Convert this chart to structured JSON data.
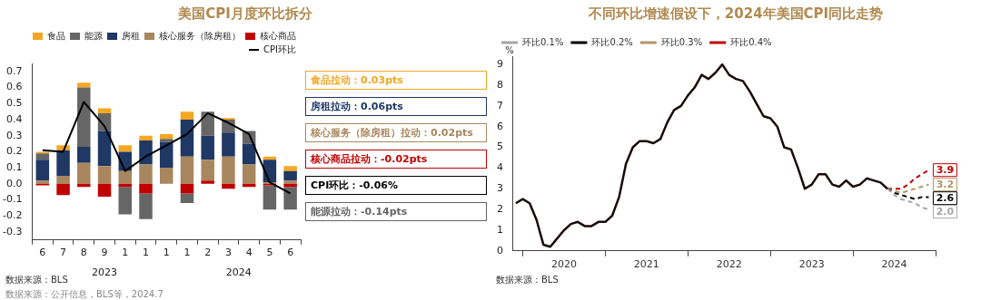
{
  "chart_data": [
    {
      "type": "bar",
      "title": "美国CPI月度环比拆分",
      "categories": [
        "6",
        "7",
        "8",
        "9",
        "1",
        "1",
        "1",
        "1",
        "2",
        "3",
        "4",
        "5",
        "6"
      ],
      "stacked": true,
      "legend": "top",
      "grid": false,
      "marker": "none",
      "ylim": [
        -0.35,
        0.75
      ],
      "yticks": [
        -0.3,
        -0.2,
        -0.1,
        {
          "value": 0,
          "label": "0.0"
        },
        0.1,
        0.2,
        0.3,
        0.4,
        0.5,
        0.6,
        0.7
      ],
      "series": [
        {
          "name": "核心商品",
          "color": "#c00000",
          "values": [
            -0.01,
            -0.07,
            -0.02,
            -0.08,
            -0.02,
            -0.06,
            0,
            -0.06,
            0.02,
            -0.03,
            -0.02,
            -0.01,
            -0.02
          ]
        },
        {
          "name": "核心服务（除房租）",
          "color": "#a8875e",
          "values": [
            0.02,
            0.05,
            0.13,
            0.11,
            0.08,
            0.12,
            0.1,
            0.17,
            0.13,
            0.17,
            0.12,
            0.01,
            0.02
          ]
        },
        {
          "name": "房租",
          "color": "#1f3864",
          "values": [
            0.13,
            0.16,
            0.1,
            0.22,
            0.12,
            0.15,
            0.16,
            0.23,
            0.15,
            0.15,
            0.13,
            0.14,
            0.06
          ]
        },
        {
          "name": "能源",
          "color": "#666666",
          "values": [
            0.04,
            0,
            0.37,
            0.11,
            -0.17,
            -0.16,
            0.02,
            -0.06,
            0.15,
            0.08,
            0.08,
            -0.15,
            -0.14
          ]
        },
        {
          "name": "食品",
          "color": "#f5a623",
          "values": [
            0.01,
            0.03,
            0.03,
            0.03,
            0.04,
            0.03,
            0.03,
            0.05,
            0,
            0.01,
            0,
            0.02,
            0.03
          ]
        },
        {
          "name": "CPI环比",
          "type": "line",
          "color": "#000000",
          "values": [
            0.21,
            0.2,
            0.51,
            0.36,
            0.08,
            0.17,
            0.24,
            0.31,
            0.44,
            0.38,
            0.31,
            0.01,
            -0.06
          ]
        }
      ],
      "annotations": [
        "2023",
        "2024",
        "食品拉动：0.03pts",
        "房租拉动：0.06pts",
        "核心服务（除房租）拉动：0.02pts",
        "核心商品拉动：-0.02pts",
        "CPI环比：-0.06%",
        "能源拉动：-0.14pts",
        "数据来源：BLS",
        "数据来源：公开信息，BLS等，2024.7"
      ]
    },
    {
      "type": "line",
      "title": "不同环比增速假设下，2024年美国CPI同比走势",
      "ylabel": "%",
      "legend": "top",
      "grid": false,
      "marker": "none",
      "xlim": [
        "2019-11-20",
        "2025-01"
      ],
      "xticks": [
        {
          "value": "2020-01",
          "label": null
        },
        {
          "value": "2020-07",
          "label": "2020"
        },
        {
          "value": "2021-01",
          "label": null
        },
        {
          "value": "2021-07",
          "label": "2021"
        },
        {
          "value": "2022-01",
          "label": null
        },
        {
          "value": "2022-07",
          "label": "2022"
        },
        {
          "value": "2023-01",
          "label": null
        },
        {
          "value": "2023-07",
          "label": "2023"
        },
        {
          "value": "2024-01",
          "label": null
        },
        {
          "value": "2024-07",
          "label": "2024"
        },
        {
          "value": "2025-01",
          "label": null
        }
      ],
      "ylim": [
        0,
        9.4
      ],
      "yticks": [
        0,
        1,
        2,
        3,
        4,
        5,
        6,
        7,
        8,
        9
      ],
      "x": [
        "2019-12",
        "2020-01",
        "2020-02",
        "2020-03",
        "2020-04",
        "2020-05",
        "2020-06",
        "2020-07",
        "2020-08",
        "2020-09",
        "2020-10",
        "2020-11",
        "2020-12",
        "2021-01",
        "2021-02",
        "2021-03",
        "2021-04",
        "2021-05",
        "2021-06",
        "2021-07",
        "2021-08",
        "2021-09",
        "2021-10",
        "2021-11",
        "2021-12",
        "2022-01",
        "2022-02",
        "2022-03",
        "2022-04",
        "2022-05",
        "2022-06",
        "2022-07",
        "2022-08",
        "2022-09",
        "2022-10",
        "2022-11",
        "2022-12",
        "2023-01",
        "2023-02",
        "2023-03",
        "2023-04",
        "2023-05",
        "2023-06",
        "2023-07",
        "2023-08",
        "2023-09",
        "2023-10",
        "2023-11",
        "2023-12",
        "2024-01",
        "2024-02",
        "2024-03",
        "2024-04",
        "2024-05",
        "2024-06"
      ],
      "series": [
        {
          "color": "#1a0a0a",
          "values": [
            2.3,
            2.5,
            2.3,
            1.5,
            0.3,
            0.2,
            0.6,
            1.0,
            1.3,
            1.4,
            1.2,
            1.2,
            1.4,
            1.4,
            1.7,
            2.6,
            4.2,
            5.0,
            5.3,
            5.3,
            5.2,
            5.4,
            6.2,
            6.8,
            7.0,
            7.5,
            7.9,
            8.5,
            8.3,
            8.6,
            9.0,
            8.5,
            8.3,
            8.2,
            7.7,
            7.1,
            6.5,
            6.4,
            6.0,
            5.0,
            4.9,
            4.0,
            3.0,
            3.2,
            3.7,
            3.7,
            3.2,
            3.1,
            3.4,
            3.1,
            3.2,
            3.5,
            3.4,
            3.3,
            3.0
          ]
        },
        {
          "name": "环比0.1%",
          "color": "#a6a6a6",
          "line_style": "dashed",
          "x": [
            "2024-06",
            "2024-07",
            "2024-08",
            "2024-09",
            "2024-10",
            "2024-11",
            "2024-12"
          ],
          "values": [
            3.0,
            2.7,
            2.5,
            2.4,
            2.3,
            2.1,
            2.0
          ],
          "value_labels": [
            null,
            null,
            null,
            null,
            null,
            null,
            "2.0"
          ]
        },
        {
          "name": "环比0.2%",
          "color": "#000000",
          "line_style": "dashed",
          "x": [
            "2024-06",
            "2024-07",
            "2024-08",
            "2024-09",
            "2024-10",
            "2024-11",
            "2024-12"
          ],
          "values": [
            3.0,
            2.8,
            2.7,
            2.6,
            2.5,
            2.6,
            2.6
          ],
          "value_labels": [
            null,
            null,
            null,
            null,
            null,
            null,
            "2.6"
          ]
        },
        {
          "name": "环比0.3%",
          "color": "#b4956a",
          "line_style": "dashed",
          "x": [
            "2024-06",
            "2024-07",
            "2024-08",
            "2024-09",
            "2024-10",
            "2024-11",
            "2024-12"
          ],
          "values": [
            3.0,
            2.9,
            2.8,
            2.9,
            3.0,
            3.1,
            3.2
          ],
          "value_labels": [
            null,
            null,
            null,
            null,
            null,
            null,
            "3.2"
          ]
        },
        {
          "name": "环比0.4%",
          "color": "#c00000",
          "line_style": "dashed",
          "x": [
            "2024-06",
            "2024-07",
            "2024-08",
            "2024-09",
            "2024-10",
            "2024-11",
            "2024-12"
          ],
          "values": [
            3.0,
            3.0,
            3.0,
            3.2,
            3.5,
            3.7,
            3.9
          ],
          "value_labels": [
            null,
            null,
            null,
            null,
            null,
            null,
            "3.9"
          ]
        }
      ],
      "annotations": [
        "数据来源：BLS"
      ]
    }
  ]
}
